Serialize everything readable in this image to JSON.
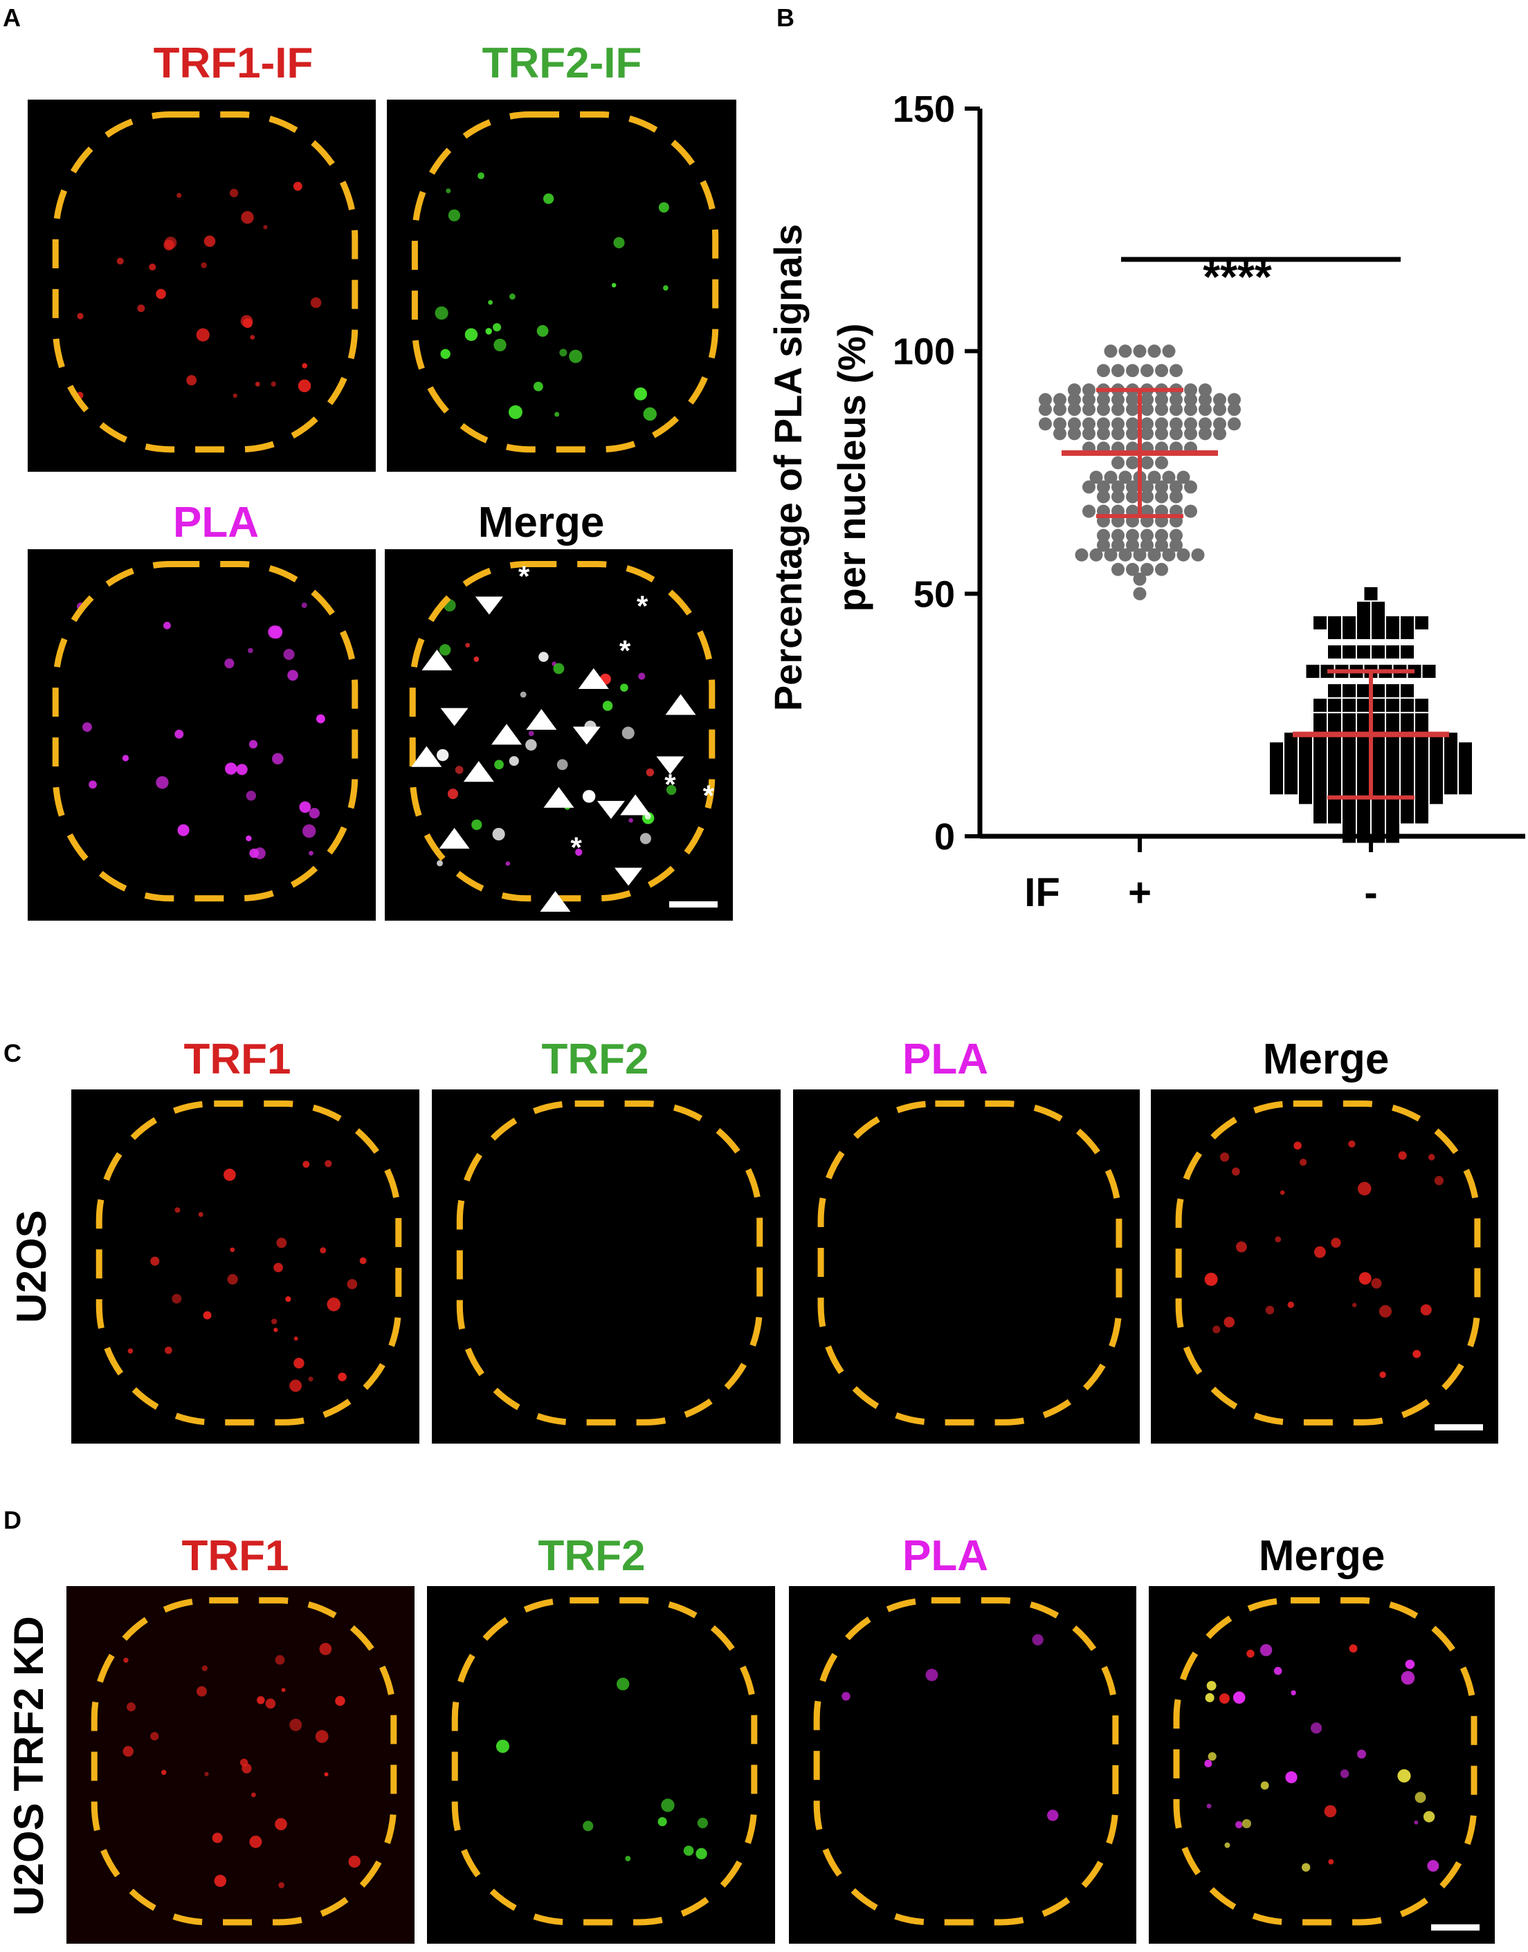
{
  "panels": {
    "A": {
      "letter": "A",
      "labels": [
        {
          "text": "TRF1-IF",
          "color": "#d42020"
        },
        {
          "text": "TRF2-IF",
          "color": "#3fa535"
        },
        {
          "text": "PLA",
          "color": "#e020e8"
        },
        {
          "text": "Merge",
          "color": "#000000"
        }
      ],
      "asterisk": "*"
    },
    "B": {
      "letter": "B"
    },
    "C": {
      "letter": "C",
      "row_label": "U2OS",
      "labels": [
        {
          "text": "TRF1",
          "color": "#d42020"
        },
        {
          "text": "TRF2",
          "color": "#3fa535"
        },
        {
          "text": "PLA",
          "color": "#e020e8"
        },
        {
          "text": "Merge",
          "color": "#000000"
        }
      ]
    },
    "D": {
      "letter": "D",
      "row_label": "U2OS TRF2 KD",
      "labels": [
        {
          "text": "TRF1",
          "color": "#d42020"
        },
        {
          "text": "TRF2",
          "color": "#3fa535"
        },
        {
          "text": "PLA",
          "color": "#e020e8"
        },
        {
          "text": "Merge",
          "color": "#000000"
        }
      ]
    }
  },
  "colors": {
    "nucleus_outline": "#f2b21a",
    "mean_sd": "#d43a3a",
    "if_plus_points": "#707070",
    "if_minus_points": "#000000"
  },
  "chart_data": {
    "type": "scatter",
    "ylabel_line1": "Percentage of PLA signals",
    "ylabel_line2": "per nucleus (%)",
    "ylim": [
      0,
      150
    ],
    "yticks": [
      "0",
      "50",
      "100",
      "150"
    ],
    "x_row_label": "IF",
    "categories": [
      "+",
      "-"
    ],
    "significance": "****",
    "grid": false,
    "series": [
      {
        "category": "+",
        "marker": "circle",
        "mean": 79,
        "sd_low": 66,
        "sd_high": 92,
        "values": [
          100,
          100,
          100,
          100,
          100,
          96,
          96,
          96,
          96,
          96,
          96,
          92,
          92,
          92,
          92,
          92,
          92,
          92,
          92,
          92,
          92,
          90,
          90,
          90,
          90,
          90,
          90,
          90,
          90,
          90,
          90,
          90,
          90,
          90,
          90,
          88,
          88,
          88,
          88,
          88,
          88,
          88,
          88,
          88,
          88,
          88,
          88,
          88,
          88,
          85,
          85,
          85,
          85,
          85,
          85,
          85,
          85,
          85,
          85,
          85,
          85,
          85,
          85,
          83,
          83,
          83,
          83,
          83,
          83,
          83,
          83,
          83,
          83,
          83,
          83,
          80,
          80,
          80,
          80,
          80,
          80,
          80,
          80,
          77,
          77,
          77,
          77,
          74,
          74,
          74,
          74,
          74,
          74,
          74,
          72,
          72,
          72,
          72,
          72,
          72,
          72,
          72,
          70,
          70,
          70,
          70,
          70,
          70,
          67,
          67,
          67,
          67,
          67,
          67,
          67,
          67,
          65,
          65,
          65,
          65,
          65,
          65,
          62,
          62,
          62,
          62,
          62,
          62,
          60,
          60,
          60,
          60,
          60,
          60,
          58,
          58,
          58,
          58,
          58,
          58,
          58,
          58,
          58,
          55,
          55,
          55,
          55,
          53,
          50
        ]
      },
      {
        "category": "-",
        "marker": "square",
        "mean": 21,
        "sd_low": 8,
        "sd_high": 34,
        "values": [
          50,
          47,
          47,
          45,
          45,
          44,
          44,
          44,
          44,
          44,
          44,
          44,
          44,
          42,
          42,
          42,
          42,
          42,
          42,
          38,
          38,
          38,
          38,
          38,
          38,
          34,
          34,
          34,
          34,
          34,
          34,
          34,
          34,
          34,
          30,
          30,
          30,
          30,
          30,
          30,
          27,
          27,
          27,
          27,
          27,
          27,
          27,
          27,
          24,
          24,
          24,
          24,
          24,
          24,
          24,
          24,
          22,
          22,
          22,
          22,
          22,
          22,
          22,
          22,
          20,
          20,
          20,
          20,
          20,
          20,
          20,
          20,
          20,
          20,
          20,
          20,
          18,
          18,
          18,
          18,
          18,
          18,
          18,
          18,
          18,
          18,
          18,
          18,
          18,
          18,
          16,
          16,
          16,
          16,
          16,
          16,
          16,
          16,
          16,
          16,
          16,
          16,
          16,
          16,
          14,
          14,
          14,
          14,
          14,
          14,
          14,
          14,
          14,
          14,
          14,
          14,
          14,
          14,
          12,
          12,
          12,
          12,
          12,
          12,
          12,
          12,
          12,
          12,
          12,
          12,
          12,
          12,
          10,
          10,
          10,
          10,
          10,
          10,
          10,
          10,
          10,
          10,
          10,
          10,
          10,
          10,
          8,
          8,
          8,
          8,
          8,
          8,
          8,
          8,
          8,
          8,
          6,
          6,
          6,
          6,
          6,
          6,
          6,
          6,
          4,
          4,
          4,
          4,
          4,
          4,
          4,
          4,
          2,
          2,
          2,
          2,
          0,
          0,
          0,
          0
        ]
      }
    ]
  }
}
